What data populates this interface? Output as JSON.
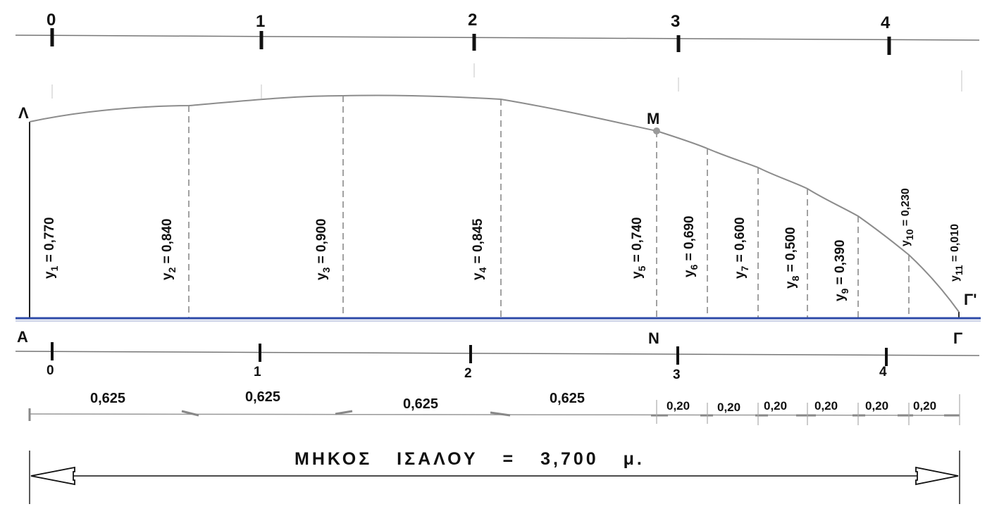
{
  "station_labels_top": [
    "0",
    "1",
    "2",
    "3",
    "4"
  ],
  "station_labels_bottom": [
    "0",
    "1",
    "2",
    "3",
    "4"
  ],
  "points": {
    "top_left": "Λ",
    "top_mid": "M",
    "top_right": "Γ'",
    "bottom_left": "A",
    "bottom_mid": "N",
    "bottom_right": "Γ"
  },
  "ordinates": [
    {
      "name": "y",
      "sub": "1",
      "value": "0,770"
    },
    {
      "name": "y",
      "sub": "2",
      "value": "0,840"
    },
    {
      "name": "y",
      "sub": "3",
      "value": "0,900"
    },
    {
      "name": "y",
      "sub": "4",
      "value": "0,845"
    },
    {
      "name": "y",
      "sub": "5",
      "value": "0,740"
    },
    {
      "name": "y",
      "sub": "6",
      "value": "0,690"
    },
    {
      "name": "y",
      "sub": "7",
      "value": "0,600"
    },
    {
      "name": "y",
      "sub": "8",
      "value": "0,500"
    },
    {
      "name": "y",
      "sub": "9",
      "value": "0,390"
    },
    {
      "name": "y",
      "sub": "10",
      "value": "0,230"
    },
    {
      "name": "y",
      "sub": "11",
      "value": "0,010"
    }
  ],
  "spacings": [
    "0,625",
    "0,625",
    "0,625",
    "0,625",
    "0,20",
    "0,20",
    "0,20",
    "0,20",
    "0,20",
    "0,20"
  ],
  "overall": {
    "label": "ΜΗΚΟΣ ΙΣΑΛΟΥ = 3,700 μ."
  },
  "colors": {
    "waterline": "#2e4ba8",
    "curve": "#888888",
    "ordinate": "#8a8a8a",
    "ink": "#111111"
  }
}
